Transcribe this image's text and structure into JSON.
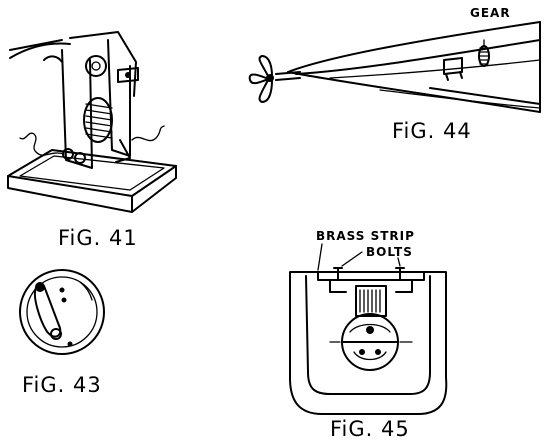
{
  "labels": {
    "fig41": "FiG. 41",
    "fig43": "FiG. 43",
    "fig44": "FiG. 44",
    "fig45": "FiG. 45",
    "gear": "GEAR",
    "brass_strip": "BRASS STRIP",
    "bolts": "BOLTS"
  }
}
